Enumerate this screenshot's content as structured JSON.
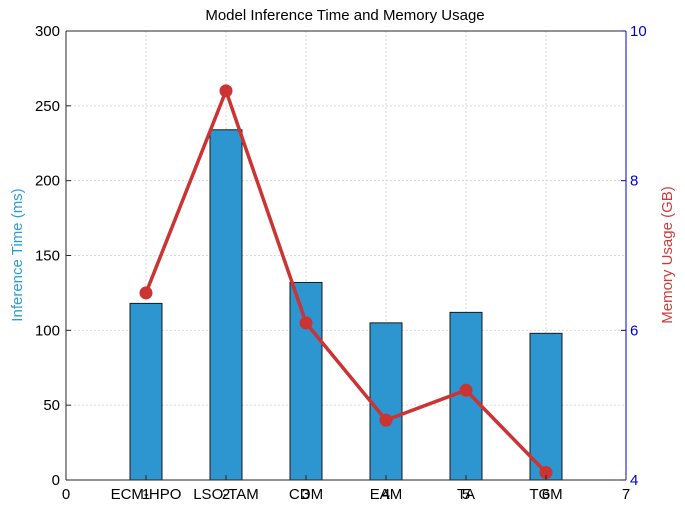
{
  "chart_data": {
    "type": "bar",
    "title": "Model Inference Time and Memory Usage",
    "x_ticks": [
      0,
      1,
      2,
      3,
      4,
      5,
      6,
      7
    ],
    "xlim": [
      0,
      7
    ],
    "categories": [
      "ECM-HPO",
      "LSO-TAM",
      "CDM",
      "EAM",
      "TA",
      "TGM"
    ],
    "category_positions": [
      1,
      2,
      3,
      4,
      5,
      6
    ],
    "ylabel_left": "Inference Time (ms)",
    "ylabel_right": "Memory Usage (GB)",
    "ylim_left": [
      0,
      300
    ],
    "yticks_left": [
      0,
      50,
      100,
      150,
      200,
      250,
      300
    ],
    "ylim_right": [
      4,
      10
    ],
    "yticks_right": [
      4,
      6,
      8,
      10
    ],
    "grid": true,
    "series": [
      {
        "axis": "left",
        "kind": "bar",
        "values": [
          118,
          234,
          132,
          105,
          112,
          98
        ]
      },
      {
        "axis": "right",
        "kind": "line",
        "values": [
          6.5,
          9.2,
          6.1,
          4.8,
          5.2,
          4.1
        ]
      }
    ],
    "colors": {
      "bar": "#2d95cf",
      "bar_edge": "#1a1a1a",
      "line": "#cc3333",
      "right_axis": "#0000cc",
      "grid": "#d9d9d9"
    }
  }
}
